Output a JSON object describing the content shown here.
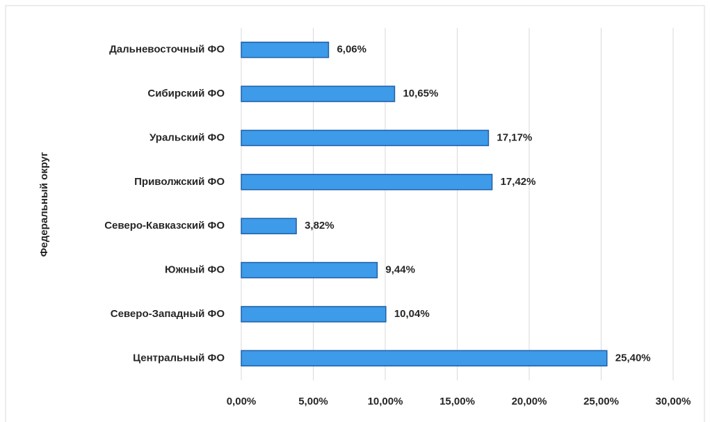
{
  "chart_data": {
    "type": "bar",
    "orientation": "horizontal",
    "y_axis_label": "Федеральный округ",
    "categories": [
      "Дальневосточный ФО",
      "Сибирский ФО",
      "Уральский ФО",
      "Приволжский ФО",
      "Северо-Кавказский ФО",
      "Южный ФО",
      "Северо-Западный ФО",
      "Центральный ФО"
    ],
    "values": [
      6.06,
      10.65,
      17.17,
      17.42,
      3.82,
      9.44,
      10.04,
      25.4
    ],
    "value_labels": [
      "6,06%",
      "10,65%",
      "17,17%",
      "17,42%",
      "3,82%",
      "9,44%",
      "10,04%",
      "25,40%"
    ],
    "color": "#3d9be9",
    "xlim": [
      0,
      30
    ],
    "xticks": [
      {
        "value": 0,
        "label": "0,00%"
      },
      {
        "value": 5,
        "label": "5,00%"
      },
      {
        "value": 10,
        "label": "10,00%"
      },
      {
        "value": 15,
        "label": "15,00%"
      },
      {
        "value": 20,
        "label": "20,00%"
      },
      {
        "value": 25,
        "label": "25,00%"
      },
      {
        "value": 30,
        "label": "30,00%"
      }
    ],
    "grid": true
  }
}
